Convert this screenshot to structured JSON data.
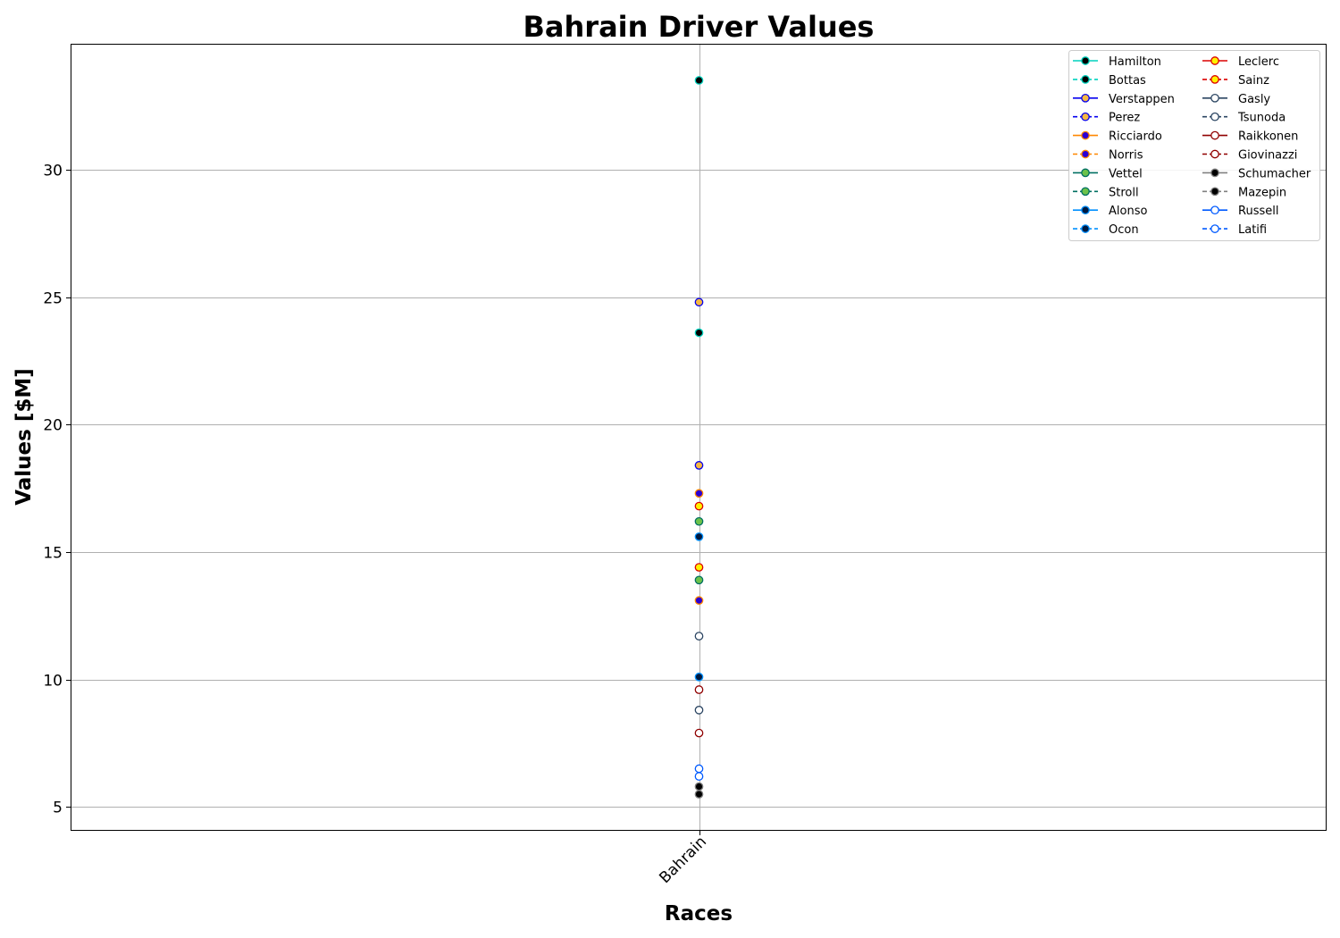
{
  "chart_data": {
    "type": "line",
    "title": "Bahrain Driver Values",
    "xlabel": "Races",
    "ylabel": "Values [$M]",
    "categories": [
      "Bahrain"
    ],
    "ylim": [
      4.1,
      34.9
    ],
    "yticks": [
      5,
      10,
      15,
      20,
      25,
      30
    ],
    "grid": true,
    "legend_position": "top-right",
    "legend_columns": 2,
    "series": [
      {
        "name": "Hamilton",
        "values": [
          33.5
        ],
        "color": "#00d2be",
        "marker_fill": "#000000",
        "dash": false
      },
      {
        "name": "Bottas",
        "values": [
          23.6
        ],
        "color": "#00d2be",
        "marker_fill": "#000000",
        "dash": true
      },
      {
        "name": "Verstappen",
        "values": [
          24.8
        ],
        "color": "#0600ef",
        "marker_fill": "#f5b841",
        "dash": false
      },
      {
        "name": "Perez",
        "values": [
          18.4
        ],
        "color": "#0600ef",
        "marker_fill": "#f5b841",
        "dash": true
      },
      {
        "name": "Ricciardo",
        "values": [
          13.1
        ],
        "color": "#ff8700",
        "marker_fill": "#2b00d4",
        "dash": false
      },
      {
        "name": "Norris",
        "values": [
          17.3
        ],
        "color": "#ff8700",
        "marker_fill": "#2b00d4",
        "dash": true
      },
      {
        "name": "Vettel",
        "values": [
          16.2
        ],
        "color": "#006f62",
        "marker_fill": "#6cc24a",
        "dash": false
      },
      {
        "name": "Stroll",
        "values": [
          13.9
        ],
        "color": "#006f62",
        "marker_fill": "#6cc24a",
        "dash": true
      },
      {
        "name": "Alonso",
        "values": [
          15.6
        ],
        "color": "#0090ff",
        "marker_fill": "#001a40",
        "dash": false
      },
      {
        "name": "Ocon",
        "values": [
          10.1
        ],
        "color": "#0090ff",
        "marker_fill": "#001a40",
        "dash": true
      },
      {
        "name": "Leclerc",
        "values": [
          14.4
        ],
        "color": "#dc0000",
        "marker_fill": "#fff200",
        "dash": false
      },
      {
        "name": "Sainz",
        "values": [
          16.8
        ],
        "color": "#dc0000",
        "marker_fill": "#fff200",
        "dash": true
      },
      {
        "name": "Gasly",
        "values": [
          11.7
        ],
        "color": "#2b4562",
        "marker_fill": "#ffffff",
        "dash": false
      },
      {
        "name": "Tsunoda",
        "values": [
          8.8
        ],
        "color": "#2b4562",
        "marker_fill": "#ffffff",
        "dash": true
      },
      {
        "name": "Raikkonen",
        "values": [
          7.9
        ],
        "color": "#900000",
        "marker_fill": "#ffffff",
        "dash": false
      },
      {
        "name": "Giovinazzi",
        "values": [
          9.6
        ],
        "color": "#900000",
        "marker_fill": "#ffffff",
        "dash": true
      },
      {
        "name": "Schumacher",
        "values": [
          5.8
        ],
        "color": "#808080",
        "marker_fill": "#000000",
        "dash": false
      },
      {
        "name": "Mazepin",
        "values": [
          5.5
        ],
        "color": "#808080",
        "marker_fill": "#000000",
        "dash": true
      },
      {
        "name": "Russell",
        "values": [
          6.2
        ],
        "color": "#005aff",
        "marker_fill": "#ffffff",
        "dash": false
      },
      {
        "name": "Latifi",
        "values": [
          6.5
        ],
        "color": "#005aff",
        "marker_fill": "#ffffff",
        "dash": true
      }
    ]
  }
}
